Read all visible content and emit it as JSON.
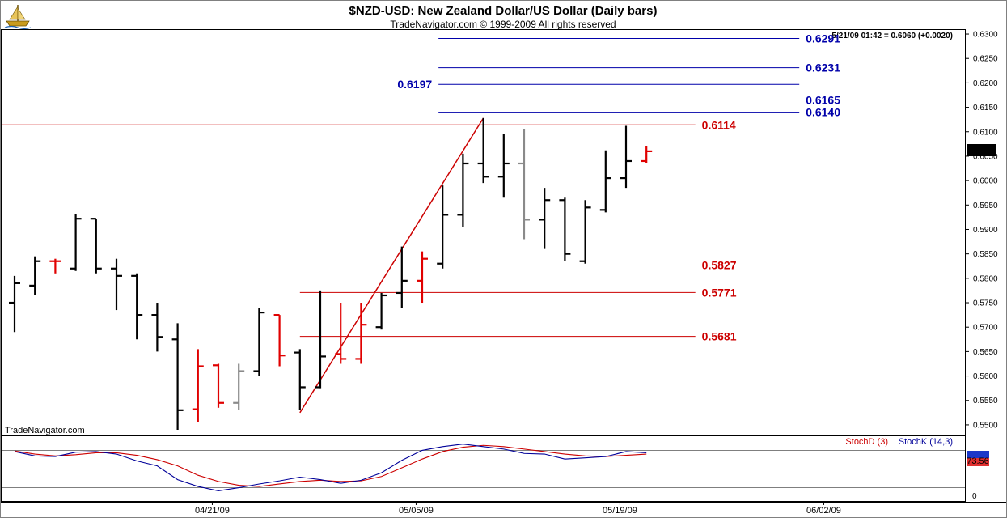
{
  "header": {
    "title": "$NZD-USD:  New Zealand Dollar/US Dollar  (Daily bars)",
    "subtitle": "TradeNavigator.com © 1999-2009 All rights reserved",
    "quote": "5/21/09 01:42 = 0.6060 (+0.0020)",
    "watermark": "TradeNavigator.com",
    "logo_icon": "ship-logo-icon"
  },
  "colors": {
    "up_bar": "#000000",
    "down_bar": "#e00000",
    "neutral_bar": "#8a8a8a",
    "fib_red": "#cc0000",
    "fib_blue": "#0000aa",
    "stochD": "#cc0000",
    "stochK": "#000099",
    "badge_blue": "#1a37c8",
    "badge_red": "#e03030"
  },
  "chart_data": [
    {
      "type": "ohlc",
      "title": "$NZD-USD:  New Zealand Dollar/US Dollar  (Daily bars)",
      "ylim": [
        0.548,
        0.631
      ],
      "yticks": [
        "0.5500",
        "0.5550",
        "0.5600",
        "0.5650",
        "0.5700",
        "0.5750",
        "0.5800",
        "0.5850",
        "0.5900",
        "0.5950",
        "0.6000",
        "0.6050",
        "0.6100",
        "0.6150",
        "0.6200",
        "0.6250",
        "0.6300"
      ],
      "x_labels": [
        {
          "label": "04/21/09",
          "index": 9.7
        },
        {
          "label": "05/05/09",
          "index": 19.7
        },
        {
          "label": "05/19/09",
          "index": 29.7
        },
        {
          "label": "06/02/09",
          "index": 39.7
        }
      ],
      "last_price": "0.6060",
      "bars": [
        {
          "i": 0,
          "o": 0.575,
          "h": 0.5805,
          "l": 0.569,
          "c": 0.579,
          "color": "black"
        },
        {
          "i": 1,
          "o": 0.5785,
          "h": 0.5845,
          "l": 0.5765,
          "c": 0.5835,
          "color": "black"
        },
        {
          "i": 2,
          "o": 0.5835,
          "h": 0.584,
          "l": 0.581,
          "c": 0.5835,
          "color": "red"
        },
        {
          "i": 3,
          "o": 0.582,
          "h": 0.5932,
          "l": 0.5815,
          "c": 0.5922,
          "color": "black"
        },
        {
          "i": 4,
          "o": 0.5922,
          "h": 0.5922,
          "l": 0.581,
          "c": 0.582,
          "color": "black"
        },
        {
          "i": 5,
          "o": 0.582,
          "h": 0.584,
          "l": 0.5735,
          "c": 0.5805,
          "color": "black"
        },
        {
          "i": 6,
          "o": 0.5805,
          "h": 0.581,
          "l": 0.5675,
          "c": 0.5725,
          "color": "black"
        },
        {
          "i": 7,
          "o": 0.5725,
          "h": 0.575,
          "l": 0.565,
          "c": 0.568,
          "color": "black"
        },
        {
          "i": 8,
          "o": 0.5675,
          "h": 0.5708,
          "l": 0.549,
          "c": 0.553,
          "color": "black"
        },
        {
          "i": 9,
          "o": 0.5532,
          "h": 0.5655,
          "l": 0.5505,
          "c": 0.562,
          "color": "red"
        },
        {
          "i": 10,
          "o": 0.5622,
          "h": 0.5625,
          "l": 0.5535,
          "c": 0.5545,
          "color": "red"
        },
        {
          "i": 11,
          "o": 0.5545,
          "h": 0.5625,
          "l": 0.553,
          "c": 0.561,
          "color": "gray"
        },
        {
          "i": 12,
          "o": 0.561,
          "h": 0.574,
          "l": 0.56,
          "c": 0.573,
          "color": "black"
        },
        {
          "i": 13,
          "o": 0.5725,
          "h": 0.5725,
          "l": 0.562,
          "c": 0.5642,
          "color": "red"
        },
        {
          "i": 14,
          "o": 0.5648,
          "h": 0.5655,
          "l": 0.553,
          "c": 0.5577,
          "color": "black"
        },
        {
          "i": 15,
          "o": 0.5577,
          "h": 0.5775,
          "l": 0.5575,
          "c": 0.564,
          "color": "black"
        },
        {
          "i": 16,
          "o": 0.5645,
          "h": 0.575,
          "l": 0.5625,
          "c": 0.5635,
          "color": "red"
        },
        {
          "i": 17,
          "o": 0.5635,
          "h": 0.575,
          "l": 0.5625,
          "c": 0.5705,
          "color": "red"
        },
        {
          "i": 18,
          "o": 0.57,
          "h": 0.577,
          "l": 0.5695,
          "c": 0.5765,
          "color": "black"
        },
        {
          "i": 19,
          "o": 0.577,
          "h": 0.5865,
          "l": 0.574,
          "c": 0.5795,
          "color": "black"
        },
        {
          "i": 20,
          "o": 0.5795,
          "h": 0.5855,
          "l": 0.575,
          "c": 0.584,
          "color": "red"
        },
        {
          "i": 21,
          "o": 0.583,
          "h": 0.599,
          "l": 0.582,
          "c": 0.593,
          "color": "black"
        },
        {
          "i": 22,
          "o": 0.593,
          "h": 0.6055,
          "l": 0.5905,
          "c": 0.6035,
          "color": "black"
        },
        {
          "i": 23,
          "o": 0.6035,
          "h": 0.6128,
          "l": 0.5995,
          "c": 0.6008,
          "color": "black"
        },
        {
          "i": 24,
          "o": 0.6008,
          "h": 0.6095,
          "l": 0.5965,
          "c": 0.6035,
          "color": "black"
        },
        {
          "i": 25,
          "o": 0.6035,
          "h": 0.6105,
          "l": 0.588,
          "c": 0.592,
          "color": "gray"
        },
        {
          "i": 26,
          "o": 0.592,
          "h": 0.5985,
          "l": 0.586,
          "c": 0.596,
          "color": "black"
        },
        {
          "i": 27,
          "o": 0.596,
          "h": 0.5965,
          "l": 0.5835,
          "c": 0.585,
          "color": "black"
        },
        {
          "i": 28,
          "o": 0.5835,
          "h": 0.596,
          "l": 0.583,
          "c": 0.5945,
          "color": "black"
        },
        {
          "i": 29,
          "o": 0.594,
          "h": 0.6062,
          "l": 0.5935,
          "c": 0.6005,
          "color": "black"
        },
        {
          "i": 30,
          "o": 0.6005,
          "h": 0.6112,
          "l": 0.5985,
          "c": 0.604,
          "color": "black"
        },
        {
          "i": 31,
          "o": 0.604,
          "h": 0.607,
          "l": 0.6035,
          "c": 0.606,
          "color": "red"
        }
      ],
      "trendline": {
        "from": {
          "i": 14,
          "price": 0.5525
        },
        "to": {
          "i": 23,
          "price": 0.6128
        }
      },
      "fib_levels": [
        {
          "value": 0.6291,
          "label": "0.6291",
          "color": "blue",
          "from_i": 20.8,
          "to_i": 38.5,
          "label_side": "right"
        },
        {
          "value": 0.6231,
          "label": "0.6231",
          "color": "blue",
          "from_i": 20.8,
          "to_i": 38.5,
          "label_side": "right"
        },
        {
          "value": 0.6197,
          "label": "0.6197",
          "color": "blue",
          "from_i": 20.8,
          "to_i": 38.5,
          "label_side": "left"
        },
        {
          "value": 0.6165,
          "label": "0.6165",
          "color": "blue",
          "from_i": 20.8,
          "to_i": 38.5,
          "label_side": "right"
        },
        {
          "value": 0.614,
          "label": "0.6140",
          "color": "blue",
          "from_i": 20.8,
          "to_i": 38.5,
          "label_side": "right"
        },
        {
          "value": 0.6114,
          "label": "0.6114",
          "color": "red",
          "from_i": -1,
          "to_i": 33.4,
          "label_side": "right"
        },
        {
          "value": 0.5827,
          "label": "0.5827",
          "color": "red",
          "from_i": 14.0,
          "to_i": 33.4,
          "label_side": "right"
        },
        {
          "value": 0.5771,
          "label": "0.5771",
          "color": "red",
          "from_i": 14.0,
          "to_i": 33.4,
          "label_side": "right"
        },
        {
          "value": 0.5681,
          "label": "0.5681",
          "color": "red",
          "from_i": 14.0,
          "to_i": 33.4,
          "label_side": "right"
        }
      ]
    },
    {
      "type": "line",
      "legend": [
        "StochD (3)",
        "StochK (14,3)"
      ],
      "ylim": [
        0,
        100
      ],
      "yticks": [
        "0"
      ],
      "ref_lines": [
        80,
        20
      ],
      "last_value": "73.56",
      "series": [
        {
          "name": "StochD (3)",
          "color": "red",
          "x": [
            0,
            1,
            2,
            3,
            4,
            5,
            6,
            7,
            8,
            9,
            10,
            11,
            12,
            13,
            14,
            15,
            16,
            17,
            18,
            19,
            20,
            21,
            22,
            23,
            24,
            25,
            26,
            27,
            28,
            29,
            30,
            31
          ],
          "values": [
            79,
            74,
            71,
            73,
            76,
            76,
            72,
            65,
            55,
            40,
            30,
            24,
            22,
            26,
            30,
            32,
            30,
            31,
            38,
            52,
            66,
            78,
            85,
            88,
            86,
            82,
            78,
            74,
            71,
            70,
            72,
            74
          ]
        },
        {
          "name": "StochK (14,3)",
          "color": "blue",
          "x": [
            0,
            1,
            2,
            3,
            4,
            5,
            6,
            7,
            8,
            9,
            10,
            11,
            12,
            13,
            14,
            15,
            16,
            17,
            18,
            19,
            20,
            21,
            22,
            23,
            24,
            25,
            26,
            27,
            28,
            29,
            30,
            31
          ],
          "values": [
            78,
            71,
            70,
            77,
            78,
            74,
            63,
            55,
            33,
            22,
            15,
            20,
            26,
            31,
            37,
            33,
            27,
            32,
            44,
            64,
            80,
            86,
            90,
            86,
            82,
            75,
            74,
            66,
            68,
            70,
            78,
            76
          ]
        }
      ]
    }
  ]
}
